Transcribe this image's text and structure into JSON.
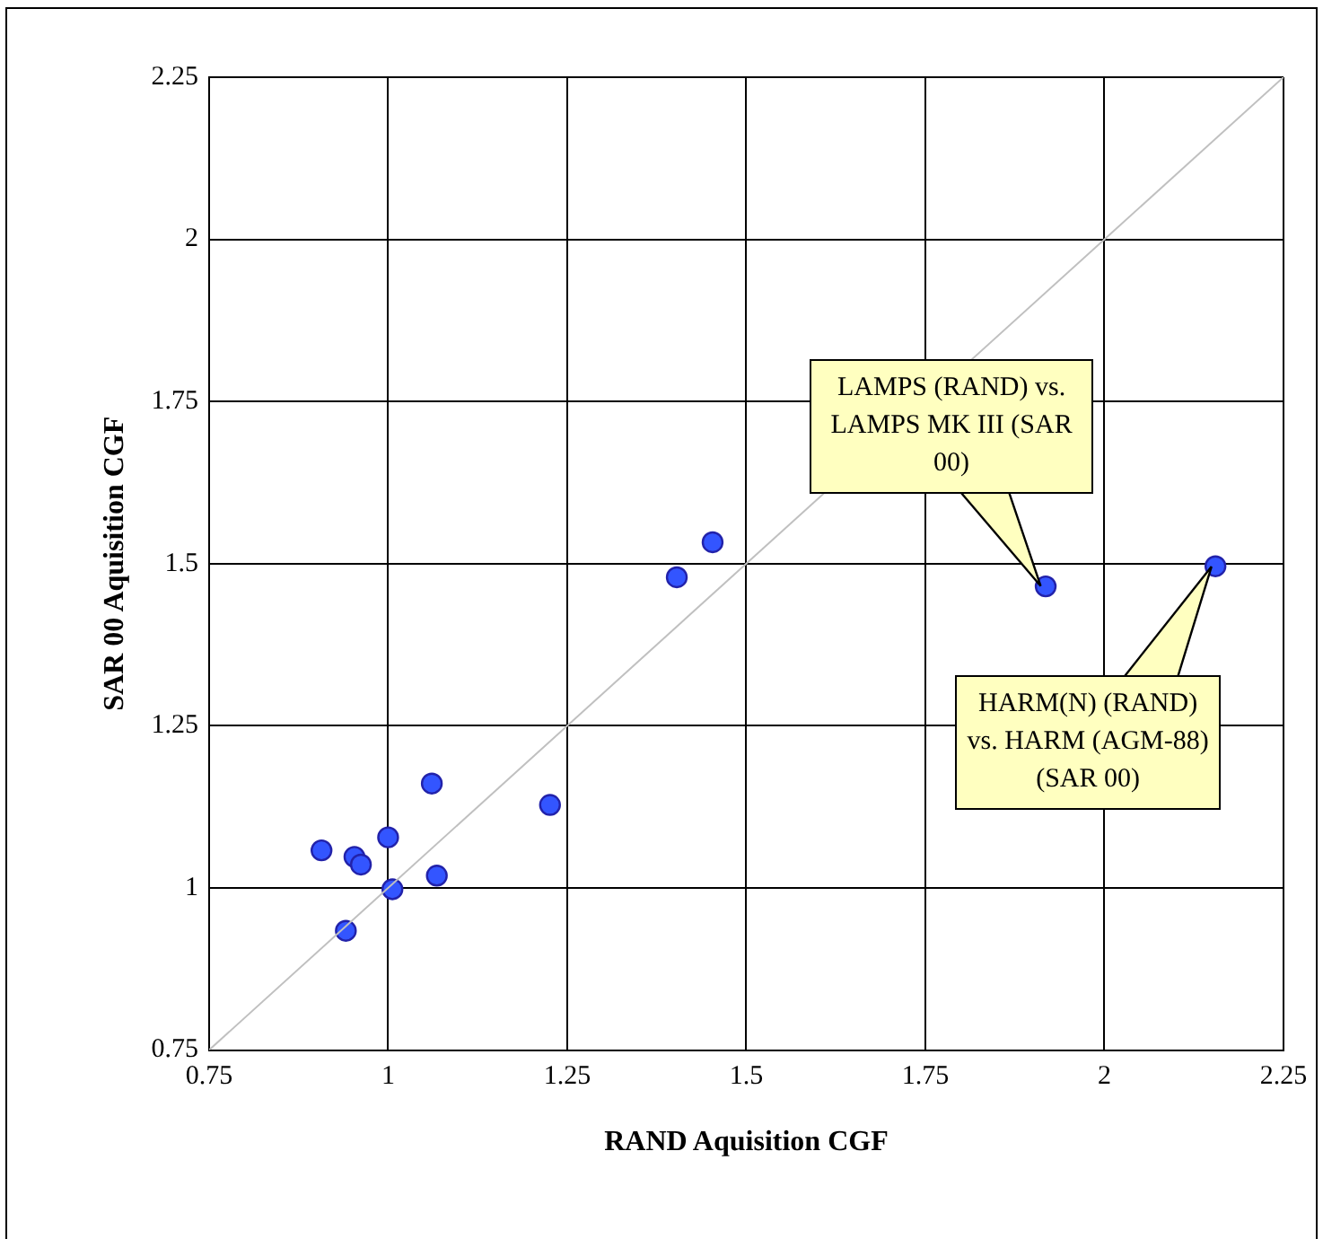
{
  "chart_data": {
    "type": "scatter",
    "xlabel": "RAND Aquisition CGF",
    "ylabel": "SAR 00 Aquisition CGF",
    "xlim": [
      0.75,
      2.25
    ],
    "xticks": [
      0.75,
      1,
      1.25,
      1.5,
      1.75,
      2,
      2.25
    ],
    "ylim": [
      0.75,
      2.25
    ],
    "yticks": [
      0.75,
      1,
      1.25,
      1.5,
      1.75,
      2,
      2.25
    ],
    "grid": true,
    "legend": false,
    "marker": "circle",
    "series": [
      {
        "type": "line",
        "color": "#c0c0c0",
        "x": [
          0.75,
          2.25
        ],
        "values": [
          0.75,
          2.25
        ],
        "marker": "none"
      },
      {
        "type": "scatter",
        "color": "#3355ff",
        "x": [
          1.453,
          1.403,
          1.061,
          1.226,
          0.907,
          0.953,
          0.962,
          1.0,
          1.068,
          1.006,
          0.941,
          1.918,
          2.155
        ],
        "values": [
          1.533,
          1.479,
          1.161,
          1.128,
          1.058,
          1.048,
          1.036,
          1.078,
          1.019,
          0.998,
          0.934,
          1.465,
          1.496
        ]
      }
    ],
    "annotations": [
      "LAMPS (RAND) vs. LAMPS MK III (SAR 00)",
      "HARM(N) (RAND) vs. HARM (AGM-88) (SAR 00)"
    ]
  }
}
